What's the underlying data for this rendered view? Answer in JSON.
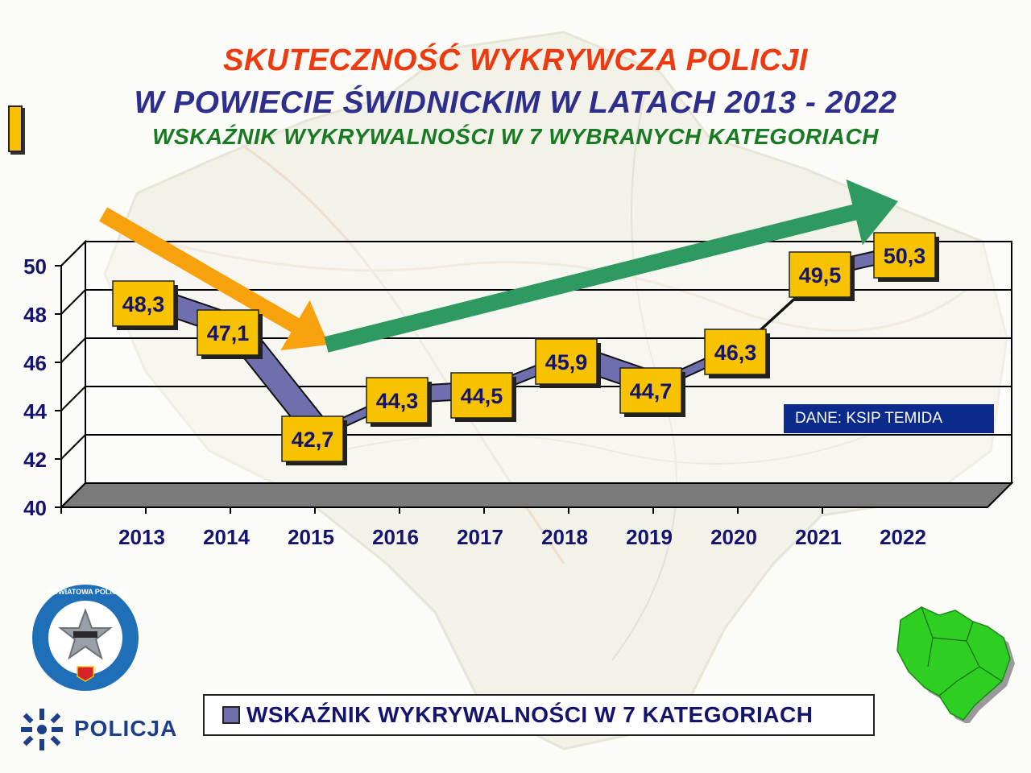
{
  "header": {
    "line1": "SKUTECZNOŚĆ WYKRYWCZA POLICJI",
    "line2": "W POWIECIE ŚWIDNICKIM W LATACH 2013 - 2022",
    "line3": "WSKAŹNIK WYKRYWALNOŚCI W 7 WYBRANYCH KATEGORIACH"
  },
  "chart_data": {
    "type": "area",
    "categories": [
      "2013",
      "2014",
      "2015",
      "2016",
      "2017",
      "2018",
      "2019",
      "2020",
      "2021",
      "2022"
    ],
    "series": [
      {
        "name": "WSKAŹNIK WYKRYWALNOŚCI W 7 KATEGORIACH",
        "values": [
          48.3,
          47.1,
          42.7,
          44.3,
          44.5,
          45.9,
          44.7,
          46.3,
          49.5,
          50.3
        ]
      }
    ],
    "data_labels": [
      "48,3",
      "47,1",
      "42,7",
      "44,3",
      "44,5",
      "45,9",
      "44,7",
      "46,3",
      "49,5",
      "50,3"
    ],
    "y_ticks": [
      "40",
      "42",
      "44",
      "46",
      "48",
      "50"
    ],
    "ylim": [
      40,
      50
    ],
    "grid": true,
    "legend_position": "bottom",
    "annotations": [
      "decreasing-trend-arrow 2013-2015",
      "increasing-trend-arrow 2015-2022"
    ]
  },
  "source_label": "DANE: KSIP TEMIDA",
  "legend": {
    "label": "WSKAŹNIK WYKRYWALNOŚCI W 7 KATEGORIACH"
  },
  "logo": {
    "badge_text": "KOMENDA POWIATOWA POLICJI W ŚWIDNICY",
    "police_text": "POLICJA"
  },
  "colors": {
    "title_red": "#ee3a10",
    "title_blue": "#2e2f8c",
    "title_green": "#187a23",
    "axis_text": "#14146e",
    "series_fill": "#6f6fae",
    "label_box": "#f7c200",
    "floor": "#7a7a7a",
    "down_arrow": "#f7a10c",
    "up_arrow": "#2e9a62",
    "source_box": "#0b2a8c",
    "map_green": "#2ecf22"
  }
}
